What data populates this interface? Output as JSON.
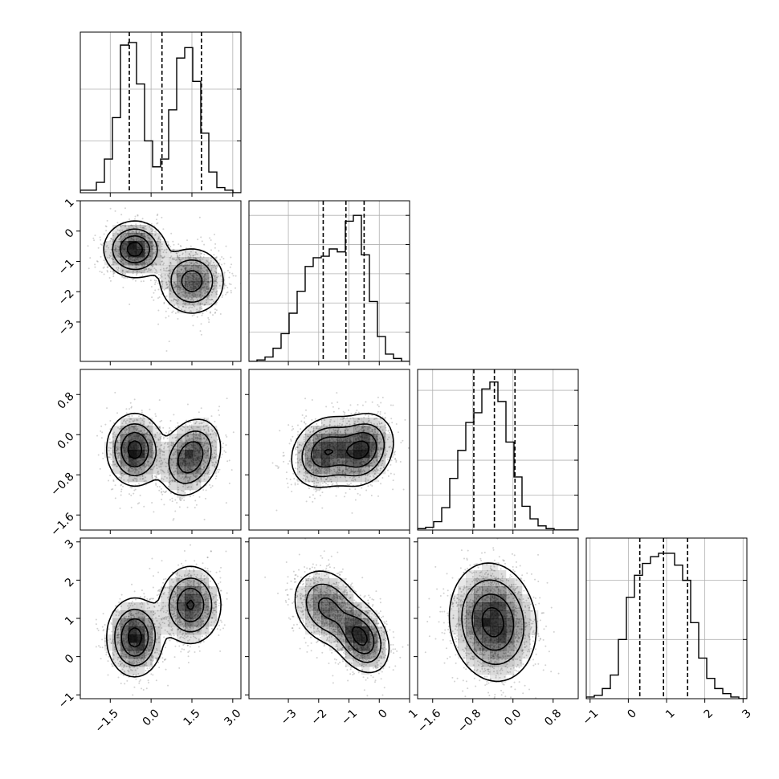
{
  "chart_data": {
    "type": "corner",
    "title": "",
    "n_parameters": 4,
    "colors": {
      "line": "#000000",
      "scatter": "#7f7f7f",
      "density": "#000000",
      "grid": "#b0b0b0"
    },
    "parameters": [
      {
        "label": "",
        "range": [
          -2.6,
          3.3
        ],
        "ticks": [
          -1.5,
          0.0,
          1.5,
          3.0
        ],
        "tick_labels": [
          "−1.5",
          "0.0",
          "1.5",
          "3.0"
        ]
      },
      {
        "label": "",
        "range": [
          -4.3,
          1.0
        ],
        "ticks": [
          -3,
          -2,
          -1,
          0,
          1
        ],
        "tick_labels": [
          "−3",
          "−2",
          "−1",
          "0",
          "1"
        ]
      },
      {
        "label": "",
        "range": [
          -1.9,
          1.3
        ],
        "ticks": [
          -1.6,
          -0.8,
          0.0,
          0.8
        ],
        "tick_labels": [
          "−1.6",
          "−0.8",
          "0.0",
          "0.8"
        ]
      },
      {
        "label": "",
        "range": [
          -1.1,
          3.1
        ],
        "ticks": [
          -1,
          0,
          1,
          2,
          3
        ],
        "tick_labels": [
          "−1",
          "0",
          "1",
          "2",
          "3"
        ]
      }
    ],
    "histograms": [
      {
        "param": 0,
        "bin_edges": [
          -2.6,
          -2.305,
          -2.01,
          -1.715,
          -1.42,
          -1.125,
          -0.83,
          -0.535,
          -0.24,
          0.055,
          0.35,
          0.645,
          0.94,
          1.235,
          1.53,
          1.825,
          2.12,
          2.415,
          2.71,
          3.005,
          3.3
        ],
        "counts": [
          1,
          1,
          4,
          13,
          29,
          57,
          58,
          42,
          20,
          10,
          13,
          32,
          52,
          56,
          43,
          23,
          8,
          2,
          1,
          0
        ],
        "quantiles": [
          -0.8,
          0.4,
          1.85
        ],
        "ylim": [
          0,
          62
        ],
        "y_gridlines": [
          20,
          40
        ]
      },
      {
        "param": 1,
        "bin_edges": [
          -4.3,
          -4.035,
          -3.77,
          -3.505,
          -3.24,
          -2.975,
          -2.71,
          -2.445,
          -2.18,
          -1.915,
          -1.65,
          -1.385,
          -1.12,
          -0.855,
          -0.59,
          -0.325,
          -0.06,
          0.205,
          0.47,
          0.735,
          1.0
        ],
        "counts": [
          0,
          1,
          3,
          9,
          19,
          33,
          48,
          65,
          71,
          72,
          77,
          75,
          96,
          100,
          73,
          41,
          17,
          5,
          2,
          0
        ],
        "quantiles": [
          -1.85,
          -1.1,
          -0.5
        ],
        "ylim": [
          0,
          110
        ],
        "y_gridlines": [
          20,
          40,
          60,
          80,
          100
        ]
      },
      {
        "param": 2,
        "bin_edges": [
          -1.9,
          -1.74,
          -1.58,
          -1.42,
          -1.26,
          -1.1,
          -0.94,
          -0.78,
          -0.62,
          -0.46,
          -0.3,
          -0.14,
          0.02,
          0.18,
          0.34,
          0.5,
          0.66,
          0.82,
          0.98,
          1.14,
          1.3
        ],
        "counts": [
          1,
          2,
          6,
          16,
          37,
          57,
          77,
          84,
          101,
          106,
          92,
          63,
          38,
          17,
          8,
          3,
          1,
          0,
          0,
          0
        ],
        "quantiles": [
          -0.78,
          -0.37,
          0.04
        ],
        "ylim": [
          0,
          115
        ],
        "y_gridlines": [
          25,
          50,
          75,
          100
        ]
      },
      {
        "param": 3,
        "bin_edges": [
          -1.1,
          -0.89,
          -0.68,
          -0.47,
          -0.26,
          -0.05,
          0.16,
          0.37,
          0.58,
          0.79,
          1.0,
          1.21,
          1.42,
          1.63,
          1.84,
          2.05,
          2.26,
          2.47,
          2.68,
          2.89,
          3.1
        ],
        "counts": [
          1,
          2,
          6,
          14,
          35,
          60,
          73,
          80,
          84,
          86,
          86,
          79,
          70,
          45,
          24,
          12,
          6,
          3,
          1,
          0
        ],
        "quantiles": [
          0.3,
          0.92,
          1.55
        ],
        "ylim": [
          0,
          95
        ],
        "y_gridlines": [
          35,
          70
        ]
      }
    ],
    "joint_distributions": [
      {
        "x_param": 0,
        "y_param": 1,
        "modes": [
          {
            "mean": [
              -0.6,
              -0.6
            ],
            "sd": [
              0.55,
              0.45
            ],
            "corr": 0.0,
            "weight": 0.5
          },
          {
            "mean": [
              1.5,
              -1.65
            ],
            "sd": [
              0.6,
              0.55
            ],
            "corr": 0.0,
            "weight": 0.5
          }
        ]
      },
      {
        "x_param": 0,
        "y_param": 2,
        "modes": [
          {
            "mean": [
              -0.6,
              -0.3
            ],
            "sd": [
              0.5,
              0.35
            ],
            "corr": 0.0,
            "weight": 0.5
          },
          {
            "mean": [
              1.45,
              -0.45
            ],
            "sd": [
              0.55,
              0.38
            ],
            "corr": 0.25,
            "weight": 0.5
          }
        ]
      },
      {
        "x_param": 1,
        "y_param": 2,
        "modes": [
          {
            "mean": [
              -1.8,
              -0.35
            ],
            "sd": [
              0.55,
              0.35
            ],
            "corr": 0.2,
            "weight": 0.5
          },
          {
            "mean": [
              -0.55,
              -0.3
            ],
            "sd": [
              0.5,
              0.35
            ],
            "corr": 0.2,
            "weight": 0.5
          }
        ]
      },
      {
        "x_param": 0,
        "y_param": 3,
        "modes": [
          {
            "mean": [
              -0.6,
              0.5
            ],
            "sd": [
              0.5,
              0.5
            ],
            "corr": 0.0,
            "weight": 0.5
          },
          {
            "mean": [
              1.45,
              1.35
            ],
            "sd": [
              0.55,
              0.5
            ],
            "corr": 0.0,
            "weight": 0.5
          }
        ]
      },
      {
        "x_param": 1,
        "y_param": 3,
        "modes": [
          {
            "mean": [
              -1.75,
              1.3
            ],
            "sd": [
              0.55,
              0.5
            ],
            "corr": -0.2,
            "weight": 0.5
          },
          {
            "mean": [
              -0.6,
              0.5
            ],
            "sd": [
              0.45,
              0.45
            ],
            "corr": -0.3,
            "weight": 0.5
          }
        ]
      },
      {
        "x_param": 2,
        "y_param": 3,
        "modes": [
          {
            "mean": [
              -0.4,
              0.9
            ],
            "sd": [
              0.42,
              0.75
            ],
            "corr": -0.1,
            "weight": 1.0
          }
        ]
      }
    ]
  }
}
